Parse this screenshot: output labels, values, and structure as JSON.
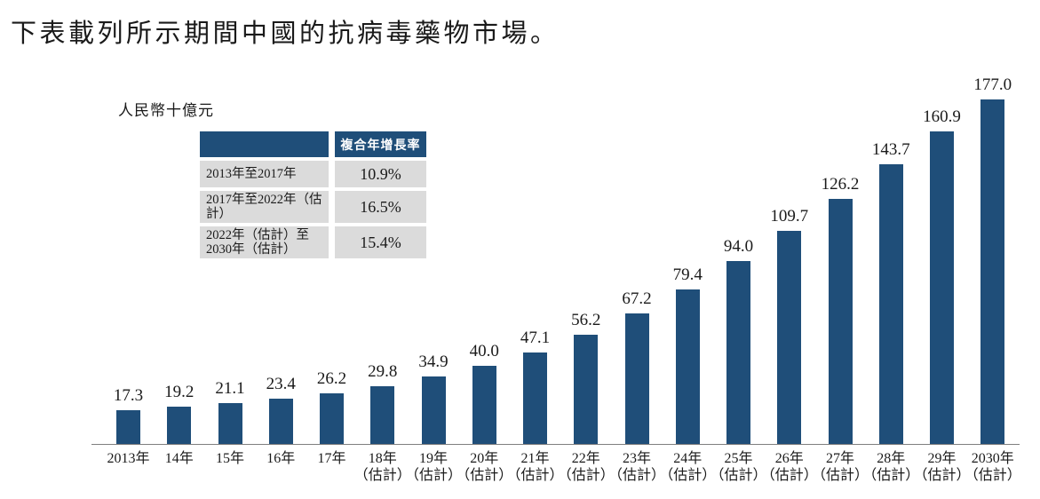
{
  "page_title": "下表載列所示期間中國的抗病毒藥物市場。",
  "unit_label": "人民幣十億元",
  "cagr_table": {
    "header_label": "複合年增長率",
    "rows": [
      {
        "period_lines": [
          "2013年至2017年"
        ],
        "value": "10.9%"
      },
      {
        "period_lines": [
          "2017年至2022年（估計）"
        ],
        "value": "16.5%"
      },
      {
        "period_lines": [
          "2022年（估計）至",
          "2030年（估計）"
        ],
        "value": "15.4%"
      }
    ]
  },
  "colors": {
    "bar": "#1F4E79",
    "table_header_bg": "#1F4E79",
    "table_header_text": "#FFFFFF",
    "table_row_bg": "#DBDBDB",
    "axis_line": "#7F7F7F",
    "text": "#1A1A1A"
  },
  "chart_data": {
    "type": "bar",
    "title": "下表載列所示期間中國的抗病毒藥物市場。",
    "ylabel": "人民幣十億元",
    "categories": [
      "2013年",
      "14年",
      "15年",
      "16年",
      "17年",
      "18年（估計）",
      "19年（估計）",
      "20年（估計）",
      "21年（估計）",
      "22年（估計）",
      "23年（估計）",
      "24年（估計）",
      "25年（估計）",
      "26年（估計）",
      "27年（估計）",
      "28年（估計）",
      "29年（估計）",
      "2030年（估計）"
    ],
    "values": [
      17.3,
      19.2,
      21.1,
      23.4,
      26.2,
      29.8,
      34.9,
      40.0,
      47.1,
      56.2,
      67.2,
      79.4,
      94.0,
      109.7,
      126.2,
      143.7,
      160.9,
      177.0
    ],
    "value_labels": [
      "17.3",
      "19.2",
      "21.1",
      "23.4",
      "26.2",
      "29.8",
      "34.9",
      "40.0",
      "47.1",
      "56.2",
      "67.2",
      "79.4",
      "94.0",
      "109.7",
      "126.2",
      "143.7",
      "160.9",
      "177.0"
    ],
    "ylim": [
      0,
      190
    ],
    "grid": false,
    "legend": false,
    "bar_color": "#1F4E79",
    "annotations": {
      "cagr_2013_2017": "10.9%",
      "cagr_2017_2022e": "16.5%",
      "cagr_2022e_2030e": "15.4%"
    }
  }
}
